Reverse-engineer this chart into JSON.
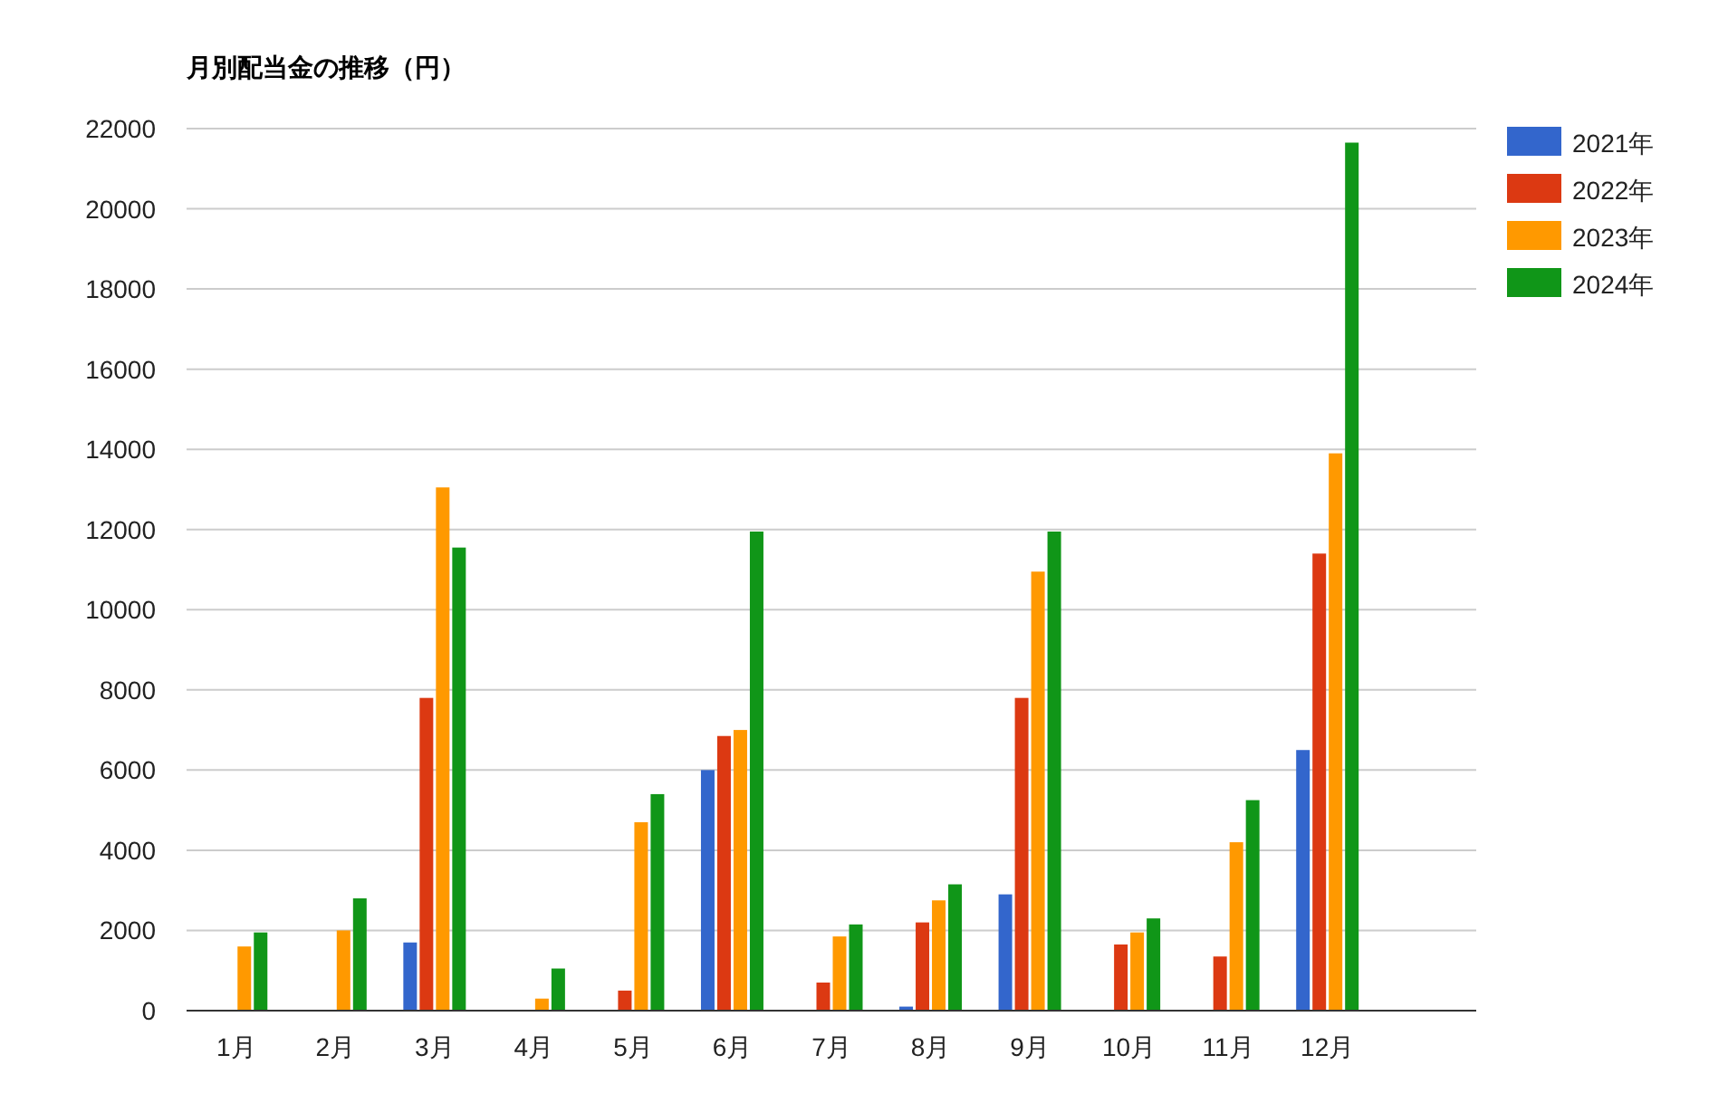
{
  "chart_data": {
    "type": "bar",
    "title": "月別配当金の推移（円）",
    "categories": [
      "1月",
      "2月",
      "3月",
      "4月",
      "5月",
      "6月",
      "7月",
      "8月",
      "9月",
      "10月",
      "11月",
      "12月"
    ],
    "series": [
      {
        "name": "2021年",
        "color": "#3366cc",
        "values": [
          null,
          null,
          1700,
          null,
          null,
          6000,
          null,
          100,
          2900,
          null,
          null,
          6500
        ]
      },
      {
        "name": "2022年",
        "color": "#dc3912",
        "values": [
          null,
          null,
          7800,
          null,
          500,
          6850,
          700,
          2200,
          7800,
          1650,
          1350,
          11400
        ]
      },
      {
        "name": "2023年",
        "color": "#ff9900",
        "values": [
          1600,
          2000,
          13050,
          300,
          4700,
          7000,
          1850,
          2750,
          10950,
          1950,
          4200,
          13900
        ]
      },
      {
        "name": "2024年",
        "color": "#109618",
        "values": [
          1950,
          2800,
          11550,
          1050,
          5400,
          11950,
          2150,
          3150,
          11950,
          2300,
          5250,
          21650
        ]
      }
    ],
    "ylim": [
      0,
      22000
    ],
    "yticks": [
      0,
      2000,
      4000,
      6000,
      8000,
      10000,
      12000,
      14000,
      16000,
      18000,
      20000,
      22000
    ],
    "grid": "y",
    "legend": "top right"
  }
}
